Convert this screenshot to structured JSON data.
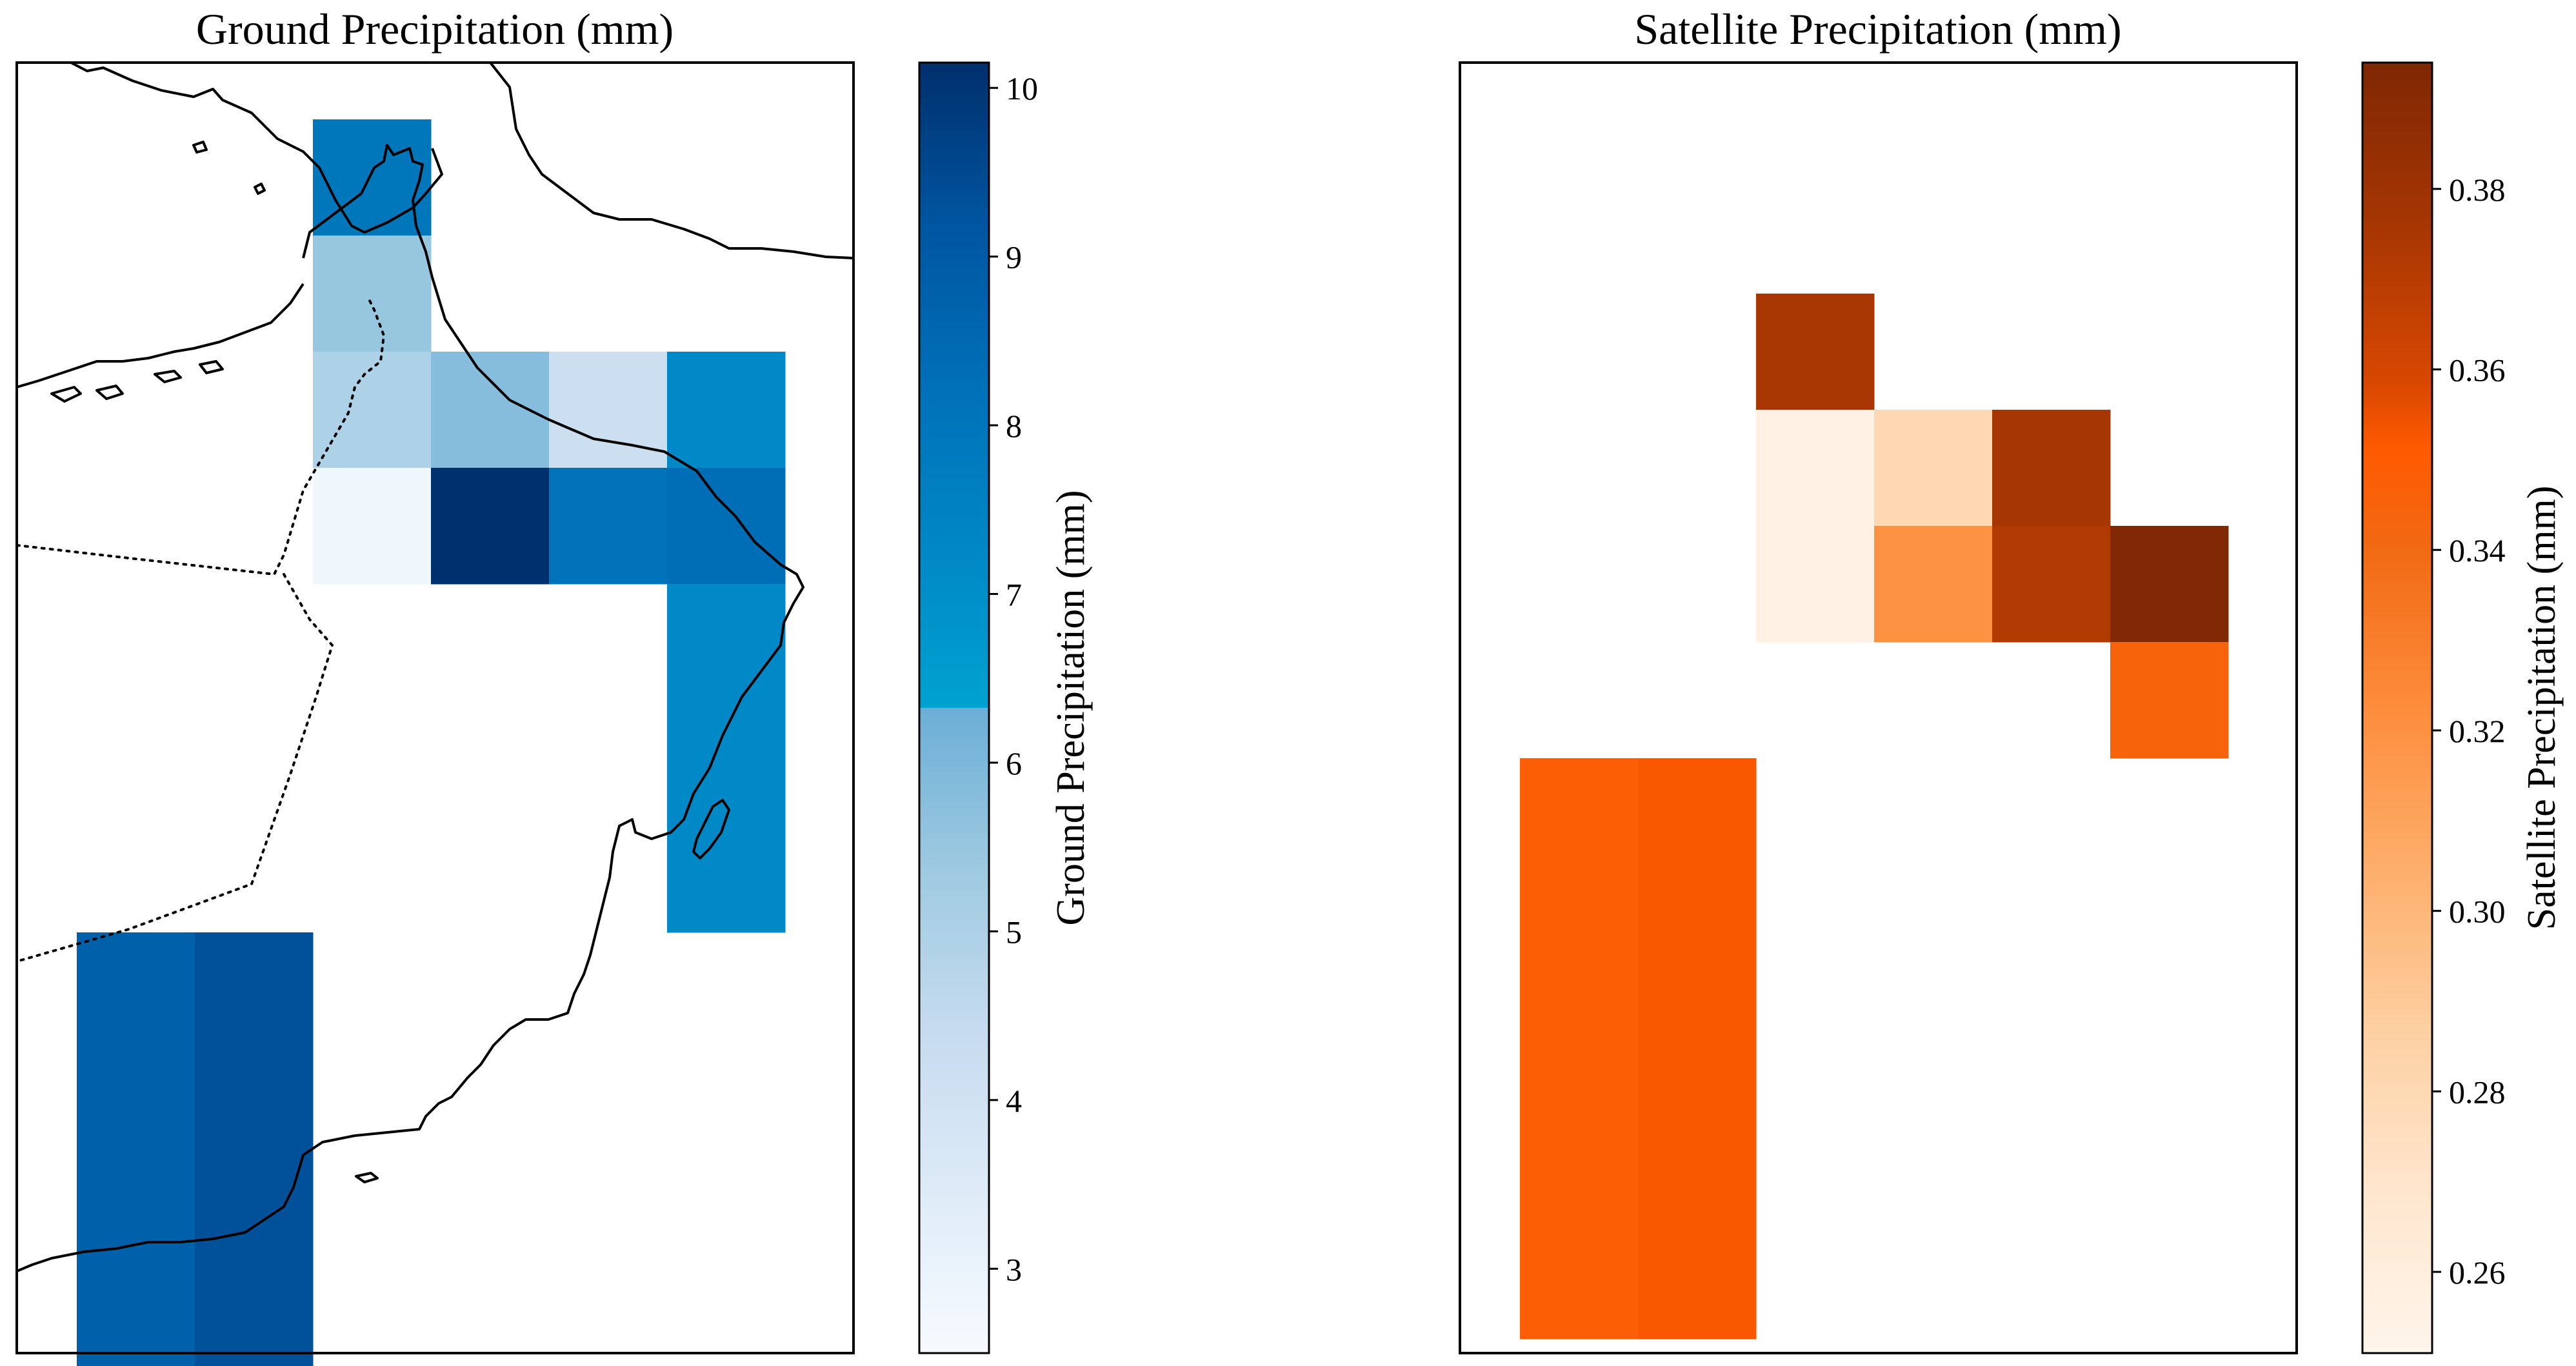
{
  "chart_data": [
    {
      "type": "heatmap",
      "title": "Ground Precipitation (mm)",
      "colorbar_label": "Ground Precipitation (mm)",
      "colormap": "Blues",
      "clim": [
        2.5,
        10.15
      ],
      "colorbar_ticks": [
        "3",
        "4",
        "5",
        "6",
        "7",
        "8",
        "9",
        "10"
      ],
      "grid_cols": 7,
      "grid_rows": 11,
      "cells": [
        {
          "col": 2,
          "row": 0,
          "value": 8.0
        },
        {
          "col": 2,
          "row": 1,
          "value": 5.5
        },
        {
          "col": 2,
          "row": 2,
          "value": 5.0
        },
        {
          "col": 3,
          "row": 2,
          "value": 5.8
        },
        {
          "col": 4,
          "row": 2,
          "value": 4.2
        },
        {
          "col": 5,
          "row": 2,
          "value": 7.2
        },
        {
          "col": 2,
          "row": 3,
          "value": 2.8
        },
        {
          "col": 3,
          "row": 3,
          "value": 10.1
        },
        {
          "col": 4,
          "row": 3,
          "value": 8.1
        },
        {
          "col": 5,
          "row": 3,
          "value": 8.3
        },
        {
          "col": 5,
          "row": 4,
          "value": 7.2
        },
        {
          "col": 5,
          "row": 5,
          "value": 7.2
        },
        {
          "col": 5,
          "row": 6,
          "value": 7.2
        },
        {
          "col": 0,
          "row": 7,
          "value": 8.8
        },
        {
          "col": 1,
          "row": 7,
          "value": 9.3
        },
        {
          "col": 0,
          "row": 8,
          "value": 8.8
        },
        {
          "col": 1,
          "row": 8,
          "value": 9.3
        },
        {
          "col": 0,
          "row": 9,
          "value": 8.8
        },
        {
          "col": 1,
          "row": 9,
          "value": 9.3
        },
        {
          "col": 0,
          "row": 10,
          "value": 8.8
        },
        {
          "col": 1,
          "row": 10,
          "value": 9.3
        }
      ]
    },
    {
      "type": "heatmap",
      "title": "Satellite Precipitation (mm)",
      "colorbar_label": "Satellite Precipitation (mm)",
      "colormap": "Oranges",
      "clim": [
        0.251,
        0.394
      ],
      "colorbar_ticks": [
        "0.26",
        "0.28",
        "0.30",
        "0.32",
        "0.34",
        "0.36",
        "0.38"
      ],
      "grid_cols": 7,
      "grid_rows": 11,
      "cells": [
        {
          "col": 2,
          "row": 1,
          "value": 0.375
        },
        {
          "col": 2,
          "row": 2,
          "value": 0.256
        },
        {
          "col": 3,
          "row": 2,
          "value": 0.28
        },
        {
          "col": 4,
          "row": 2,
          "value": 0.376
        },
        {
          "col": 2,
          "row": 3,
          "value": 0.256
        },
        {
          "col": 3,
          "row": 3,
          "value": 0.32
        },
        {
          "col": 4,
          "row": 3,
          "value": 0.372
        },
        {
          "col": 5,
          "row": 3,
          "value": 0.393
        },
        {
          "col": 5,
          "row": 4,
          "value": 0.345
        },
        {
          "col": 0,
          "row": 5,
          "value": 0.348
        },
        {
          "col": 1,
          "row": 5,
          "value": 0.352
        },
        {
          "col": 0,
          "row": 6,
          "value": 0.348
        },
        {
          "col": 1,
          "row": 6,
          "value": 0.352
        },
        {
          "col": 0,
          "row": 7,
          "value": 0.348
        },
        {
          "col": 1,
          "row": 7,
          "value": 0.352
        },
        {
          "col": 0,
          "row": 8,
          "value": 0.348
        },
        {
          "col": 1,
          "row": 8,
          "value": 0.352
        },
        {
          "col": 0,
          "row": 9,
          "value": 0.348
        },
        {
          "col": 1,
          "row": 9,
          "value": 0.352
        }
      ]
    }
  ]
}
